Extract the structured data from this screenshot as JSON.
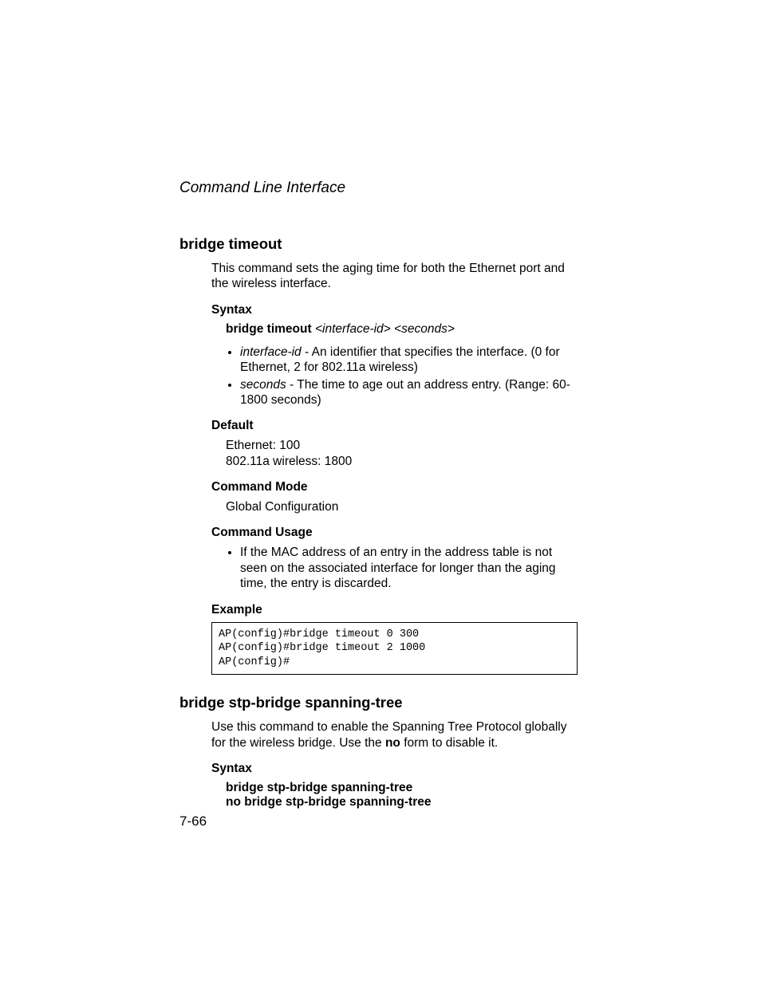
{
  "running_head": "Command Line Interface",
  "page_number": "7-66",
  "section1": {
    "title": "bridge timeout",
    "intro": "This command sets the aging time for both the Ethernet port and the wireless interface.",
    "syntax_head": "Syntax",
    "syntax_cmd": "bridge timeout",
    "syntax_arg1": "<interface-id>",
    "syntax_arg2": "<seconds>",
    "param1_name": "interface-id",
    "param1_desc": " - An identifier that specifies the interface. (0 for Ethernet, 2 for 802.11a wireless)",
    "param2_name": "seconds",
    "param2_desc": " - The time to age out an address entry. (Range: 60-1800 seconds)",
    "default_head": "Default",
    "default_line1": "Ethernet: 100",
    "default_line2": "802.11a wireless: 1800",
    "mode_head": "Command Mode",
    "mode_text": "Global Configuration",
    "usage_head": "Command Usage",
    "usage_bullet": "If the MAC address of an entry in the address table is not seen on the associated interface for longer than the aging time, the entry is discarded.",
    "example_head": "Example",
    "example_code": "AP(config)#bridge timeout 0 300\nAP(config)#bridge timeout 2 1000\nAP(config)#"
  },
  "section2": {
    "title": "bridge stp-bridge spanning-tree",
    "intro_pre": "Use this command to enable the Spanning Tree Protocol globally for the wireless bridge. Use the ",
    "intro_bold": "no",
    "intro_post": " form to disable it.",
    "syntax_head": "Syntax",
    "syntax_line1": "bridge stp-bridge spanning-tree",
    "syntax_line2": "no bridge stp-bridge spanning-tree"
  }
}
